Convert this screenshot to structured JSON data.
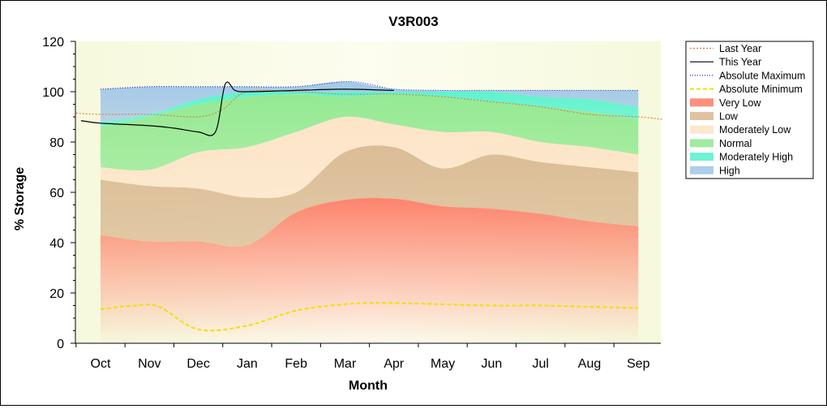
{
  "chart_data": {
    "type": "area",
    "title": "V3R003",
    "xlabel": "Month",
    "ylabel": "% Storage",
    "ylim": [
      0,
      120
    ],
    "yticks": [
      0,
      20,
      40,
      60,
      80,
      100,
      120
    ],
    "x": [
      "Oct",
      "Nov",
      "Dec",
      "Jan",
      "Feb",
      "Mar",
      "Apr",
      "May",
      "Jun",
      "Jul",
      "Aug",
      "Sep"
    ],
    "legend_position": "right",
    "grid": false,
    "plot_background": "#fbfbe2",
    "bands": [
      {
        "name": "Very Low",
        "color": "#fd7d66",
        "lower": [
          0,
          0,
          0,
          0,
          0,
          0,
          0,
          0,
          0,
          0,
          0,
          0
        ],
        "upper": [
          43,
          40.5,
          40.5,
          39,
          52,
          57,
          57.5,
          54.5,
          53.5,
          51.5,
          48.5,
          46.5
        ]
      },
      {
        "name": "Low",
        "color": "#d9b991",
        "lower": [
          43,
          40.5,
          40.5,
          39,
          52,
          57,
          57.5,
          54.5,
          53.5,
          51.5,
          48.5,
          46.5
        ],
        "upper": [
          65,
          62.5,
          61.5,
          58,
          60,
          76,
          78,
          69.5,
          75,
          72,
          70,
          68
        ]
      },
      {
        "name": "Moderately Low",
        "color": "#fde3c6",
        "lower": [
          65,
          62.5,
          61.5,
          58,
          60,
          76,
          78,
          69.5,
          75,
          72,
          70,
          68
        ],
        "upper": [
          70,
          69,
          76,
          78,
          84,
          90,
          87,
          84,
          84,
          80,
          78,
          75
        ]
      },
      {
        "name": "Normal",
        "color": "#8fe88e",
        "lower": [
          70,
          69,
          76,
          78,
          84,
          90,
          87,
          84,
          84,
          80,
          78,
          75
        ],
        "upper": [
          86,
          90,
          95,
          98,
          99,
          98,
          99,
          98,
          96,
          94,
          92,
          89
        ]
      },
      {
        "name": "Moderately High",
        "color": "#56f2cd",
        "lower": [
          86,
          90,
          95,
          98,
          99,
          98,
          99,
          98,
          96,
          94,
          92,
          89
        ],
        "upper": [
          88,
          91,
          97,
          100,
          100,
          100,
          100,
          100,
          100,
          98,
          97,
          94
        ]
      },
      {
        "name": "High",
        "color": "#9fc6e8",
        "lower": [
          88,
          91,
          97,
          100,
          100,
          100,
          100,
          100,
          100,
          98,
          97,
          94
        ],
        "upper": [
          101,
          102,
          102,
          102,
          102,
          104,
          101,
          100.5,
          100.5,
          100.5,
          100.5,
          100.5
        ]
      }
    ],
    "series": [
      {
        "name": "Last Year",
        "color": "#e07b3a",
        "style": "dotted",
        "x": [
          -0.5,
          0,
          1,
          2,
          2.5,
          3,
          4,
          5,
          6,
          7,
          8,
          9,
          10,
          11,
          11.5
        ],
        "values": [
          91.5,
          91,
          91,
          90,
          93,
          100,
          100,
          99,
          99,
          98,
          96,
          94,
          91,
          90,
          89
        ]
      },
      {
        "name": "This Year",
        "color": "#000000",
        "style": "solid",
        "x": [
          -0.4,
          0,
          1,
          1.5,
          2,
          2.35,
          2.55,
          2.75,
          3,
          4,
          5,
          6
        ],
        "values": [
          88.5,
          87.5,
          86.5,
          85.5,
          84,
          84,
          103,
          100.5,
          100,
          100.5,
          101,
          100.5
        ]
      },
      {
        "name": "Absolute Maximum",
        "color": "#2222cc",
        "style": "dashdot",
        "x": [
          0,
          1,
          2,
          3,
          4,
          5,
          5.5,
          6,
          7,
          8,
          9,
          10,
          11
        ],
        "values": [
          101,
          102,
          102,
          102,
          102,
          104,
          103,
          101,
          100.5,
          100.5,
          100.5,
          100.5,
          100.5
        ]
      },
      {
        "name": "Absolute Minimum",
        "color": "#f0e000",
        "style": "dashed",
        "x": [
          0,
          0.7,
          1.2,
          2,
          3,
          4,
          5,
          5.5,
          6,
          7,
          8,
          9,
          10,
          11
        ],
        "values": [
          13.5,
          15,
          14.5,
          5.5,
          7,
          13,
          15.5,
          16,
          16,
          15.5,
          15,
          15,
          14.5,
          14
        ]
      }
    ],
    "legend": [
      {
        "label": "Last Year",
        "kind": "line",
        "color": "#e07b3a",
        "style": "dotted"
      },
      {
        "label": "This Year",
        "kind": "line",
        "color": "#000000",
        "style": "solid"
      },
      {
        "label": "Absolute Maximum",
        "kind": "line",
        "color": "#2222cc",
        "style": "dashdot"
      },
      {
        "label": "Absolute Minimum",
        "kind": "line",
        "color": "#f0e000",
        "style": "dashed"
      },
      {
        "label": "Very Low",
        "kind": "area",
        "color": "#fd7d66"
      },
      {
        "label": "Low",
        "kind": "area",
        "color": "#d9b991"
      },
      {
        "label": "Moderately Low",
        "kind": "area",
        "color": "#fde3c6"
      },
      {
        "label": "Normal",
        "kind": "area",
        "color": "#8fe88e"
      },
      {
        "label": "Moderately High",
        "kind": "area",
        "color": "#56f2cd"
      },
      {
        "label": "High",
        "kind": "area",
        "color": "#9fc6e8"
      }
    ]
  }
}
